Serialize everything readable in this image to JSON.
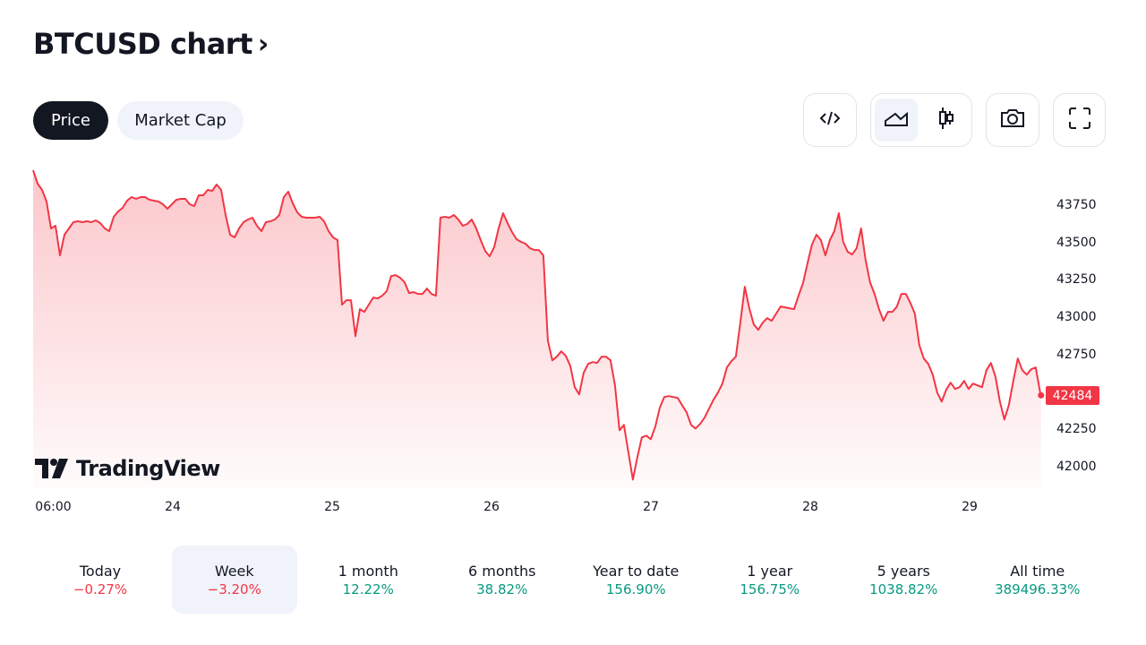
{
  "header": {
    "title": "BTCUSD chart",
    "chevron": "›"
  },
  "tabs": [
    {
      "label": "Price",
      "active": true
    },
    {
      "label": "Market Cap",
      "active": false
    }
  ],
  "toolbar": {
    "icons": [
      "embed-code-icon",
      "area-chart-icon",
      "candlestick-icon",
      "camera-icon",
      "fullscreen-icon"
    ],
    "selected": "area-chart-icon"
  },
  "colors": {
    "line": "#f23645",
    "positive": "#089981",
    "negative": "#f23645",
    "accent": "#131722"
  },
  "branding": {
    "logo_text": "TradingView"
  },
  "chart_data": {
    "type": "area",
    "title": "BTCUSD",
    "x_start_hours": 2.97,
    "x_step_hours": 0.674,
    "x_unit": "hours since 23rd 00:00",
    "x_ticks": [
      {
        "label": "06:00",
        "hours": 6
      },
      {
        "label": "24",
        "hours": 24
      },
      {
        "label": "25",
        "hours": 48
      },
      {
        "label": "26",
        "hours": 72
      },
      {
        "label": "27",
        "hours": 96
      },
      {
        "label": "28",
        "hours": 120
      },
      {
        "label": "29",
        "hours": 144
      }
    ],
    "y_ticks": [
      "43750",
      "43500",
      "43250",
      "43000",
      "42750",
      "42250",
      "42000"
    ],
    "ylim": [
      41850,
      44000
    ],
    "last_price": "42484",
    "values": [
      43990,
      43900,
      43858,
      43780,
      43600,
      43618,
      43420,
      43558,
      43600,
      43642,
      43648,
      43642,
      43648,
      43642,
      43654,
      43636,
      43600,
      43582,
      43678,
      43714,
      43738,
      43786,
      43810,
      43798,
      43810,
      43810,
      43792,
      43786,
      43780,
      43762,
      43732,
      43762,
      43792,
      43798,
      43798,
      43762,
      43750,
      43822,
      43822,
      43858,
      43852,
      43894,
      43858,
      43690,
      43558,
      43540,
      43600,
      43642,
      43660,
      43672,
      43618,
      43582,
      43642,
      43648,
      43660,
      43690,
      43810,
      43846,
      43768,
      43708,
      43678,
      43672,
      43672,
      43672,
      43678,
      43648,
      43582,
      43540,
      43522,
      43090,
      43120,
      43120,
      42880,
      43060,
      43042,
      43090,
      43138,
      43132,
      43150,
      43180,
      43282,
      43288,
      43270,
      43240,
      43168,
      43174,
      43162,
      43162,
      43198,
      43162,
      43150,
      43672,
      43678,
      43672,
      43690,
      43660,
      43618,
      43630,
      43660,
      43600,
      43522,
      43450,
      43414,
      43474,
      43600,
      43702,
      43636,
      43576,
      43528,
      43510,
      43498,
      43468,
      43456,
      43456,
      43420,
      42850,
      42718,
      42742,
      42778,
      42748,
      42682,
      42538,
      42490,
      42634,
      42694,
      42706,
      42700,
      42742,
      42742,
      42718,
      42550,
      42250,
      42286,
      42100,
      41920,
      42070,
      42202,
      42214,
      42190,
      42274,
      42400,
      42472,
      42478,
      42472,
      42466,
      42418,
      42370,
      42286,
      42262,
      42292,
      42334,
      42394,
      42454,
      42502,
      42562,
      42670,
      42712,
      42742,
      42970,
      43210,
      43066,
      42958,
      42922,
      42970,
      43000,
      42982,
      43030,
      43078,
      43072,
      43066,
      43060,
      43150,
      43234,
      43366,
      43492,
      43558,
      43522,
      43420,
      43522,
      43582,
      43702,
      43510,
      43444,
      43426,
      43468,
      43600,
      43390,
      43240,
      43162,
      43060,
      42982,
      43042,
      43042,
      43078,
      43162,
      43162,
      43102,
      43030,
      42820,
      42730,
      42694,
      42622,
      42502,
      42442,
      42520,
      42568,
      42526,
      42538,
      42580,
      42526,
      42562,
      42550,
      42538,
      42652,
      42700,
      42610,
      42442,
      42322,
      42418,
      42580,
      42730,
      42652,
      42622,
      42658,
      42670,
      42502,
      42484
    ]
  },
  "periods": [
    {
      "label": "Today",
      "value": "−0.27%",
      "dir": "neg"
    },
    {
      "label": "Week",
      "value": "−3.20%",
      "dir": "neg",
      "selected": true
    },
    {
      "label": "1 month",
      "value": "12.22%",
      "dir": "pos"
    },
    {
      "label": "6 months",
      "value": "38.82%",
      "dir": "pos"
    },
    {
      "label": "Year to date",
      "value": "156.90%",
      "dir": "pos"
    },
    {
      "label": "1 year",
      "value": "156.75%",
      "dir": "pos"
    },
    {
      "label": "5 years",
      "value": "1038.82%",
      "dir": "pos"
    },
    {
      "label": "All time",
      "value": "389496.33%",
      "dir": "pos"
    }
  ]
}
